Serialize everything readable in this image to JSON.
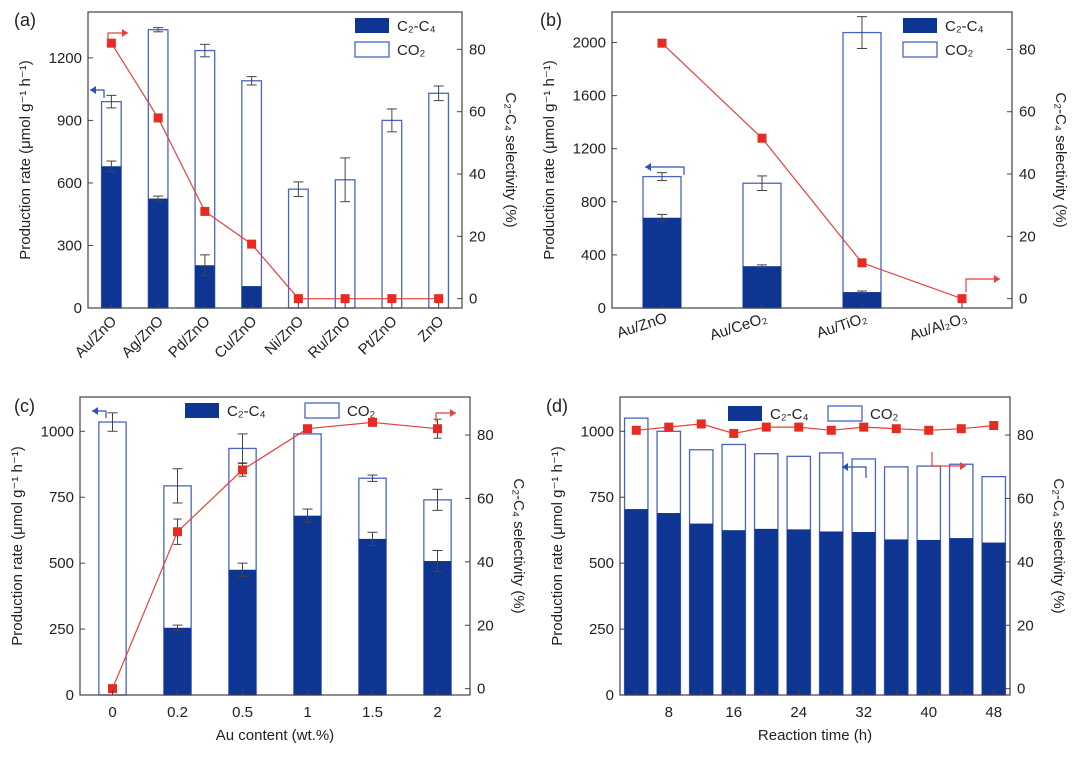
{
  "chart_data": [
    {
      "type": "bar",
      "panel": "(a)",
      "categories": [
        "Au/ZnO",
        "Ag/ZnO",
        "Pd/ZnO",
        "Cu/ZnO",
        "Ni/ZnO",
        "Ru/ZnO",
        "Pt/ZnO",
        "ZnO"
      ],
      "x_rotated": true,
      "x_rotation": -45,
      "ylabel": "Production rate (μmol g⁻¹ h⁻¹)",
      "ylim": [
        0,
        1420
      ],
      "yticks": [
        0,
        300,
        600,
        900,
        1200
      ],
      "y2label": "C₂-C₄ selectivity (%)",
      "y2lim": [
        -3,
        92
      ],
      "y2ticks": [
        0,
        20,
        40,
        60,
        80
      ],
      "legend": [
        "C₂-C₄",
        "CO₂"
      ],
      "legend_position": "top-right",
      "series": [
        {
          "name": "C₂-C₄",
          "values": [
            680,
            525,
            205,
            105,
            0,
            0,
            0,
            0
          ],
          "errors": [
            25,
            12,
            50,
            0,
            0,
            0,
            0,
            0
          ]
        },
        {
          "name": "CO₂",
          "values": [
            310,
            810,
            1030,
            985,
            570,
            615,
            900,
            1030
          ],
          "errors": [
            30,
            10,
            30,
            20,
            35,
            105,
            55,
            35
          ]
        }
      ],
      "selectivity": [
        82,
        58,
        28,
        17.5,
        0,
        0,
        0,
        0
      ],
      "selectivity_errors": [
        0,
        0,
        0,
        0,
        0,
        0,
        1,
        0
      ],
      "x_offset": 0
    },
    {
      "type": "bar",
      "panel": "(b)",
      "categories": [
        "Au/ZnO",
        "Au/CeO₂",
        "Au/TiO₂",
        "Au/Al₂O₃"
      ],
      "x_rotated": true,
      "x_rotation": -18,
      "ylabel": "Production rate (μmol g⁻¹ h⁻¹)",
      "ylim": [
        0,
        2230
      ],
      "yticks": [
        0,
        400,
        800,
        1200,
        1600,
        2000
      ],
      "y2label": "C₂-C₄ selectivity (%)",
      "y2lim": [
        -3,
        92
      ],
      "y2ticks": [
        0,
        20,
        40,
        60,
        80
      ],
      "legend": [
        "C₂-C₄",
        "CO₂"
      ],
      "legend_position": "top-right",
      "series": [
        {
          "name": "C₂-C₄",
          "values": [
            680,
            315,
            120,
            0
          ],
          "errors": [
            25,
            10,
            8,
            0
          ]
        },
        {
          "name": "CO₂",
          "values": [
            310,
            625,
            1955,
            0
          ],
          "errors": [
            30,
            55,
            120,
            0
          ]
        }
      ],
      "selectivity": [
        82,
        51.5,
        11.5,
        0
      ],
      "selectivity_errors": [
        0,
        0,
        0,
        0
      ],
      "x_offset": 0
    },
    {
      "type": "bar",
      "panel": "(c)",
      "categories": [
        "0",
        "0.2",
        "0.5",
        "1",
        "1.5",
        "2"
      ],
      "x_rotated": false,
      "x_rotation": 0,
      "xlabel": "Au content (wt.%)",
      "ylabel": "Production rate (μmol g⁻¹ h⁻¹)",
      "ylim": [
        0,
        1130
      ],
      "yticks": [
        0,
        250,
        500,
        750,
        1000
      ],
      "y2label": "C₂-C₄ selectivity (%)",
      "y2lim": [
        -2,
        92
      ],
      "y2ticks": [
        0,
        20,
        40,
        60,
        80
      ],
      "legend": [
        "C₂-C₄",
        "CO₂"
      ],
      "legend_position": "top-center",
      "series": [
        {
          "name": "C₂-C₄",
          "values": [
            0,
            255,
            475,
            680,
            592,
            508
          ],
          "errors": [
            0,
            10,
            25,
            25,
            25,
            40
          ]
        },
        {
          "name": "CO₂",
          "values": [
            1035,
            538,
            460,
            310,
            230,
            232
          ],
          "errors": [
            35,
            65,
            55,
            0,
            12,
            40
          ]
        }
      ],
      "selectivity": [
        0,
        49.5,
        69,
        82,
        84,
        82
      ],
      "selectivity_errors": [
        0,
        4,
        2,
        1,
        1,
        3
      ],
      "x_offset": 0
    },
    {
      "type": "bar",
      "panel": "(d)",
      "categories": [
        "",
        "8",
        "",
        "16",
        "",
        "24",
        "",
        "32",
        "",
        "40",
        "",
        "48"
      ],
      "x_rotated": false,
      "x_rotation": 0,
      "xlabel": "Reaction time (h)",
      "ylabel": "Production rate (μmol g⁻¹ h⁻¹)",
      "ylim": [
        0,
        1130
      ],
      "yticks": [
        0,
        250,
        500,
        750,
        1000
      ],
      "y2label": "C₂-C₄ selectivity (%)",
      "y2lim": [
        -2,
        92
      ],
      "y2ticks": [
        0,
        20,
        40,
        60,
        80
      ],
      "legend": [
        "C₂-C₄",
        "CO₂"
      ],
      "legend_position": "top-left",
      "series": [
        {
          "name": "C₂-C₄",
          "values": [
            705,
            690,
            650,
            625,
            630,
            628,
            620,
            618,
            590,
            588,
            595,
            578
          ],
          "errors": [
            0,
            0,
            0,
            0,
            0,
            0,
            0,
            0,
            0,
            0,
            0,
            0
          ]
        },
        {
          "name": "CO₂",
          "values": [
            345,
            310,
            280,
            325,
            285,
            277,
            298,
            277,
            275,
            280,
            280,
            250
          ],
          "errors": [
            0,
            0,
            0,
            0,
            0,
            0,
            0,
            0,
            0,
            0,
            0,
            0
          ]
        }
      ],
      "selectivity": [
        81.5,
        82.5,
        83.5,
        80.5,
        82.5,
        82.5,
        81.5,
        82.5,
        82,
        81.5,
        82,
        83
      ],
      "selectivity_errors": [
        0,
        0,
        0,
        0,
        0,
        0,
        0,
        0,
        0,
        0,
        0,
        0
      ],
      "x_offset": 0
    }
  ]
}
